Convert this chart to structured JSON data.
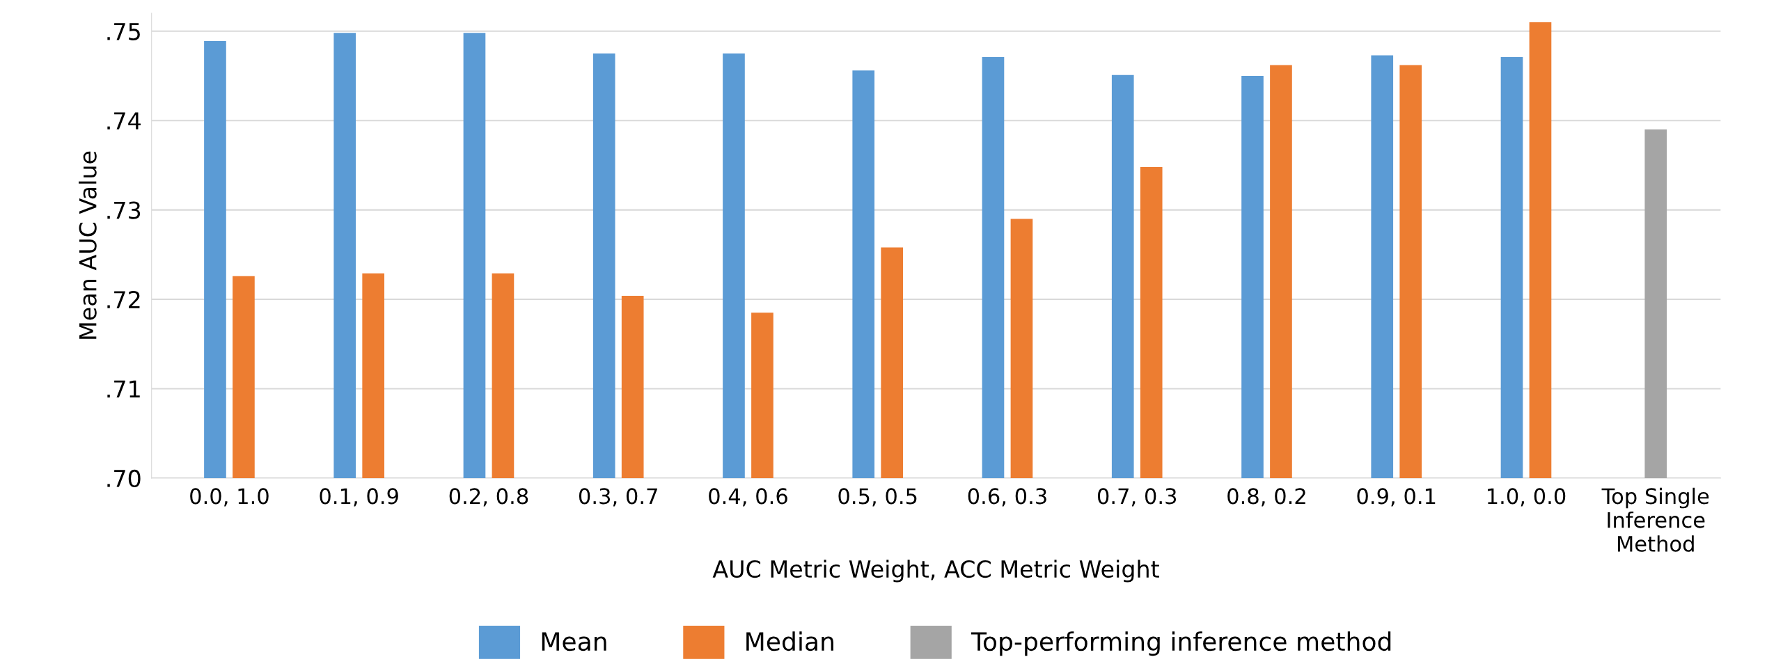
{
  "chart_data": {
    "type": "bar",
    "xlabel": "AUC Metric Weight, ACC Metric Weight",
    "ylabel": "Mean AUC Value",
    "categories": [
      "0.0, 1.0",
      "0.1, 0.9",
      "0.2, 0.8",
      "0.3, 0.7",
      "0.4, 0.6",
      "0.5, 0.5",
      "0.6, 0.3",
      "0.7, 0.3",
      "0.8, 0.2",
      "0.9, 0.1",
      "1.0, 0.0",
      "Top Single\nInference\nMethod"
    ],
    "series": [
      {
        "name": "Mean",
        "color": "#5b9bd5",
        "values": [
          0.7489,
          0.7498,
          0.7498,
          0.7475,
          0.7475,
          0.7456,
          0.7471,
          0.7451,
          0.745,
          0.7473,
          0.7471,
          null
        ]
      },
      {
        "name": "Median",
        "color": "#ed7d31",
        "values": [
          0.7226,
          0.7229,
          0.7229,
          0.7204,
          0.7185,
          0.7258,
          0.729,
          0.7348,
          0.7462,
          0.7462,
          0.751,
          null
        ]
      },
      {
        "name": "Top-performing inference method",
        "color": "#a5a5a5",
        "values": [
          null,
          null,
          null,
          null,
          null,
          null,
          null,
          null,
          null,
          null,
          null,
          0.739
        ]
      }
    ],
    "ylim": [
      0.7,
      0.752
    ],
    "yticks": [
      {
        "value": 0.7,
        "label": ".70"
      },
      {
        "value": 0.71,
        "label": ".71"
      },
      {
        "value": 0.72,
        "label": ".72"
      },
      {
        "value": 0.73,
        "label": ".73"
      },
      {
        "value": 0.74,
        "label": ".74"
      },
      {
        "value": 0.75,
        "label": ".75"
      }
    ],
    "grid": "y",
    "legend": "bottom"
  }
}
